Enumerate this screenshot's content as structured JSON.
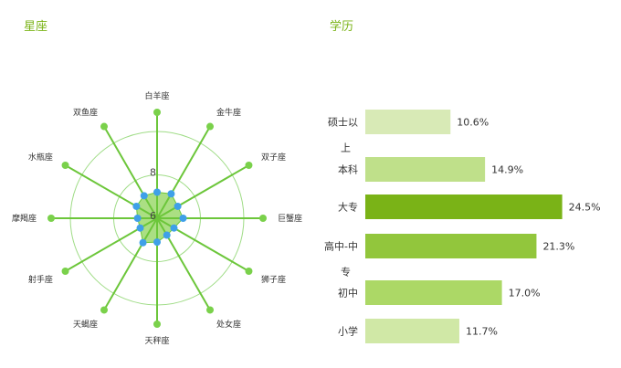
{
  "chart_data": [
    {
      "type": "radar",
      "title": "星座",
      "axes": [
        "白羊座",
        "金牛座",
        "双子座",
        "巨蟹座",
        "狮子座",
        "处女座",
        "天秤座",
        "天蝎座",
        "射手座",
        "摩羯座",
        "水瓶座",
        "双鱼座"
      ],
      "values": [
        7.2,
        7.3,
        7.1,
        7.2,
        6.9,
        6.9,
        7.1,
        7.3,
        6.9,
        6.9,
        7.1,
        7.2
      ],
      "rlim": [
        6,
        10
      ],
      "tick_labels": [
        "6",
        "8"
      ],
      "colors": {
        "fill": "#8fd45a",
        "line": "#6cc63a",
        "point": "#3fa0e8",
        "grid": "#9fdc86",
        "axis_end": "#7ad14b"
      }
    },
    {
      "type": "bar",
      "orientation": "horizontal",
      "title": "学历",
      "categories": [
        "硕士以上",
        "本科",
        "大专",
        "高中-中专",
        "初中",
        "小学"
      ],
      "category_lines": [
        [
          "硕士以",
          "上"
        ],
        [
          "本科"
        ],
        [
          "大专"
        ],
        [
          "高中-中",
          "专"
        ],
        [
          "初中"
        ],
        [
          "小学"
        ]
      ],
      "values": [
        10.6,
        14.9,
        24.5,
        21.3,
        17.0,
        11.7
      ],
      "value_labels": [
        "10.6%",
        "14.9%",
        "24.5%",
        "21.3%",
        "17.0%",
        "11.7%"
      ],
      "xlim": [
        0,
        30
      ],
      "colors": [
        "#d8eab6",
        "#bfe08a",
        "#7ab317",
        "#92c63c",
        "#acd866",
        "#d0e8a6"
      ]
    }
  ]
}
